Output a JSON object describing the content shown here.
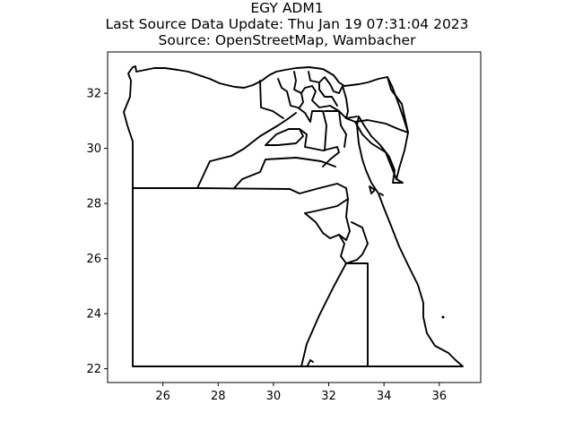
{
  "title": {
    "line1": "EGY ADM1",
    "line2": "Last Source Data Update: Thu Jan 19 07:31:04 2023",
    "line3": "Source: OpenStreetMap, Wambacher"
  },
  "chart_data": {
    "type": "map",
    "region": "Egypt",
    "admin_level": "ADM1",
    "xlim": [
      24.0,
      37.5
    ],
    "ylim": [
      21.5,
      33.5
    ],
    "xticks": [
      "26",
      "28",
      "30",
      "32",
      "34",
      "36"
    ],
    "yticks": [
      "22",
      "24",
      "26",
      "28",
      "30",
      "32"
    ],
    "grid": false,
    "line_color": "#000000"
  }
}
